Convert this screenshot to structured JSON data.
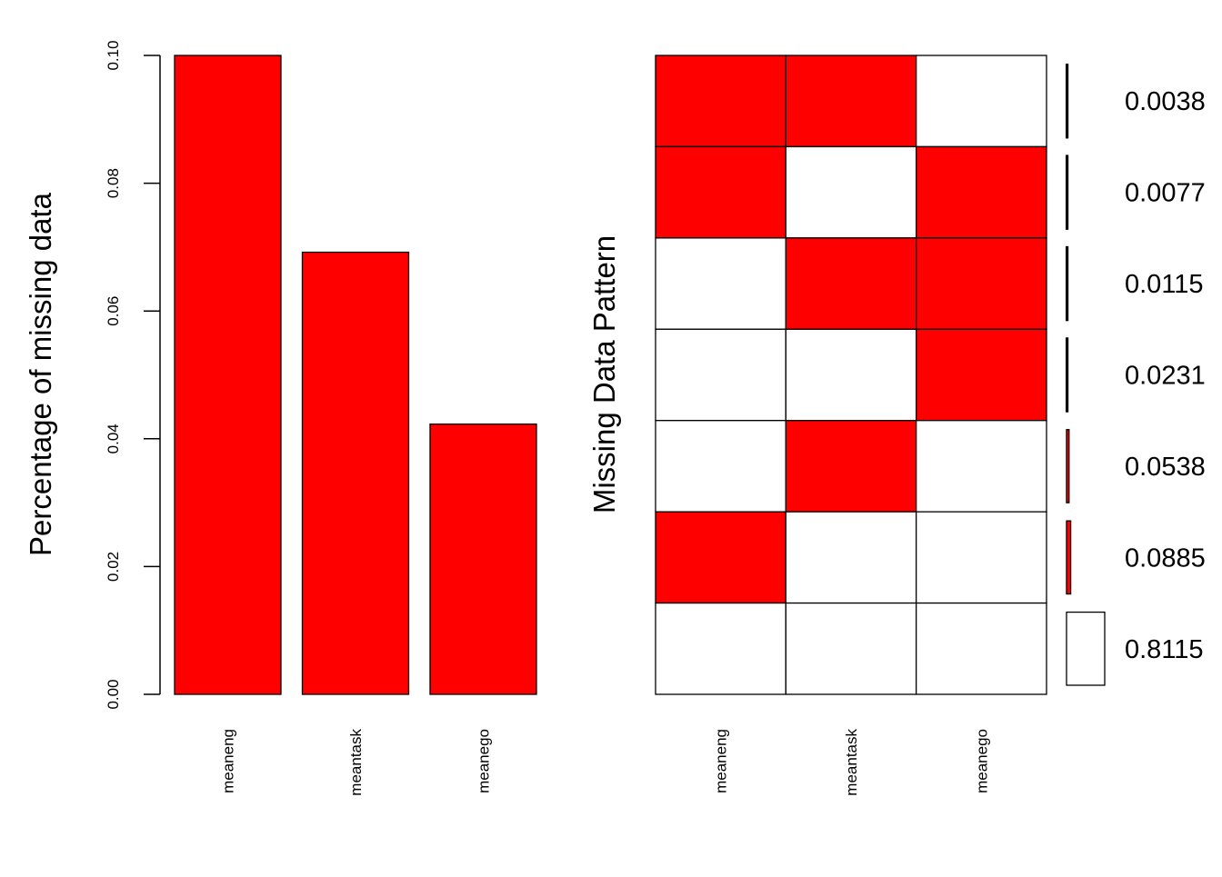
{
  "chart_data": [
    {
      "type": "bar",
      "ylabel": "Percentage of missing data",
      "categories": [
        "meaneng",
        "meantask",
        "meanego"
      ],
      "values": [
        0.1,
        0.0692,
        0.0423
      ],
      "ylim": [
        0,
        0.1
      ],
      "yticks": [
        "0.00",
        "0.02",
        "0.04",
        "0.06",
        "0.08",
        "0.10"
      ],
      "bar_color": "#ff0000",
      "grid": false
    },
    {
      "type": "heatmap",
      "ylabel": "Missing Data Pattern",
      "columns": [
        "meaneng",
        "meantask",
        "meanego"
      ],
      "patterns": [
        {
          "missing": [
            1,
            1,
            0
          ],
          "proportion": "0.0038"
        },
        {
          "missing": [
            1,
            0,
            1
          ],
          "proportion": "0.0077"
        },
        {
          "missing": [
            0,
            1,
            1
          ],
          "proportion": "0.0115"
        },
        {
          "missing": [
            0,
            0,
            1
          ],
          "proportion": "0.0231"
        },
        {
          "missing": [
            0,
            1,
            0
          ],
          "proportion": "0.0538"
        },
        {
          "missing": [
            1,
            0,
            0
          ],
          "proportion": "0.0885"
        },
        {
          "missing": [
            0,
            0,
            0
          ],
          "proportion": "0.8115"
        }
      ],
      "missing_color": "#ff0000",
      "observed_color": "#ffffff"
    }
  ]
}
